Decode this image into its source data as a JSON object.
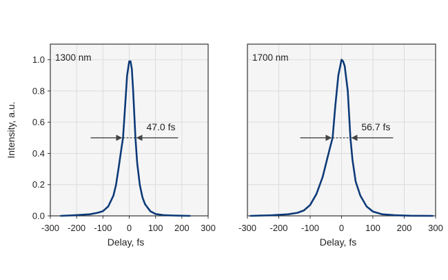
{
  "chart_data": [
    {
      "type": "line",
      "panel_label": "1300 nm",
      "xlabel": "Delay, fs",
      "ylabel": "Intensity, a.u.",
      "xlim": [
        -300,
        300
      ],
      "ylim": [
        0,
        1.1
      ],
      "x_ticks": [
        "-300",
        "-200",
        "-100",
        "0",
        "100",
        "200",
        "300"
      ],
      "y_ticks": [
        "0.0",
        "0.2",
        "0.4",
        "0.6",
        "0.8",
        "1.0"
      ],
      "grid": true,
      "curve_color": "#0d3a78",
      "x": [
        -260,
        -200,
        -150,
        -120,
        -100,
        -80,
        -60,
        -50,
        -40,
        -30,
        -23.5,
        -15,
        -8,
        0,
        5,
        10,
        15,
        23.5,
        30,
        40,
        50,
        60,
        80,
        100,
        130,
        170,
        230
      ],
      "y": [
        0.0,
        0.005,
        0.01,
        0.02,
        0.03,
        0.06,
        0.13,
        0.2,
        0.31,
        0.43,
        0.5,
        0.72,
        0.9,
        0.99,
        0.99,
        0.94,
        0.8,
        0.5,
        0.34,
        0.2,
        0.12,
        0.075,
        0.03,
        0.012,
        0.005,
        0.002,
        0.0
      ],
      "fwhm_annotation": {
        "text": "47.0 fs",
        "level": 0.5,
        "x_left": -23.5,
        "x_right": 23.5
      }
    },
    {
      "type": "line",
      "panel_label": "1700 nm",
      "xlabel": "Delay, fs",
      "ylabel": "",
      "xlim": [
        -300,
        300
      ],
      "ylim": [
        0,
        1.1
      ],
      "x_ticks": [
        "-300",
        "-200",
        "-100",
        "0",
        "100",
        "200",
        "300"
      ],
      "y_ticks": [],
      "grid": true,
      "curve_color": "#0d3a78",
      "x": [
        -290,
        -220,
        -170,
        -140,
        -120,
        -100,
        -80,
        -60,
        -45,
        -35,
        -28.35,
        -20,
        -10,
        0,
        5,
        10,
        20,
        28.35,
        35,
        45,
        60,
        80,
        100,
        130,
        170,
        220,
        290
      ],
      "y": [
        0.0,
        0.004,
        0.01,
        0.02,
        0.035,
        0.07,
        0.14,
        0.25,
        0.37,
        0.45,
        0.5,
        0.7,
        0.9,
        1.0,
        0.99,
        0.96,
        0.8,
        0.5,
        0.36,
        0.22,
        0.13,
        0.06,
        0.028,
        0.01,
        0.004,
        0.001,
        0.0
      ],
      "fwhm_annotation": {
        "text": "56.7 fs",
        "level": 0.5,
        "x_left": -28.35,
        "x_right": 28.35
      }
    }
  ]
}
